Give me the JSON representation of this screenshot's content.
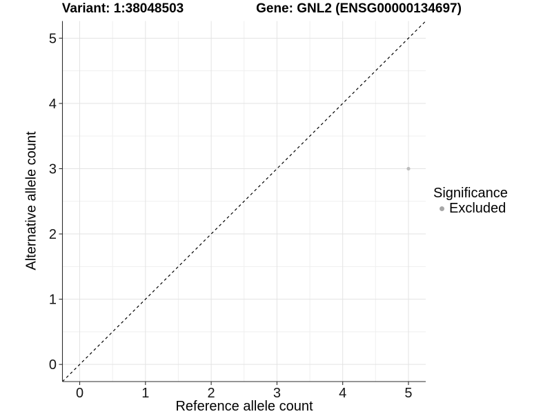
{
  "chart_data": {
    "type": "scatter",
    "title_left": "Variant: 1:38048503",
    "title_right": "Gene: GNL2 (ENSG00000134697)",
    "xlabel": "Reference allele count",
    "ylabel": "Alternative allele count",
    "xlim": [
      -0.2625,
      5.2625
    ],
    "ylim": [
      -0.2625,
      5.2625
    ],
    "x_ticks": [
      0,
      1,
      2,
      3,
      4,
      5
    ],
    "y_ticks": [
      0,
      1,
      2,
      3,
      4,
      5
    ],
    "x_minor_ticks": [
      0.5,
      1.5,
      2.5,
      3.5,
      4.5
    ],
    "y_minor_ticks": [
      0.5,
      1.5,
      2.5,
      3.5,
      4.5
    ],
    "grid": "major+minor",
    "series": [
      {
        "name": "Excluded",
        "color": "#bcbcbc",
        "points": [
          {
            "x": 5,
            "y": 3
          }
        ]
      }
    ],
    "reference_line": {
      "kind": "abline",
      "slope": 1,
      "intercept": 0,
      "style": "dashed"
    },
    "legend": {
      "title": "Significance",
      "position": "right",
      "items": [
        {
          "label": "Excluded",
          "marker_color": "#a6a6a6"
        }
      ]
    }
  },
  "colors": {
    "background": "#ffffff",
    "grid_major": "#e3e3e3",
    "grid_minor": "#efefef",
    "axis_line": "#2b2b2b",
    "tick_mark": "#2b2b2b",
    "tick_label": "#141414",
    "reference_line": "#000000",
    "point": "#bcbcbc"
  }
}
